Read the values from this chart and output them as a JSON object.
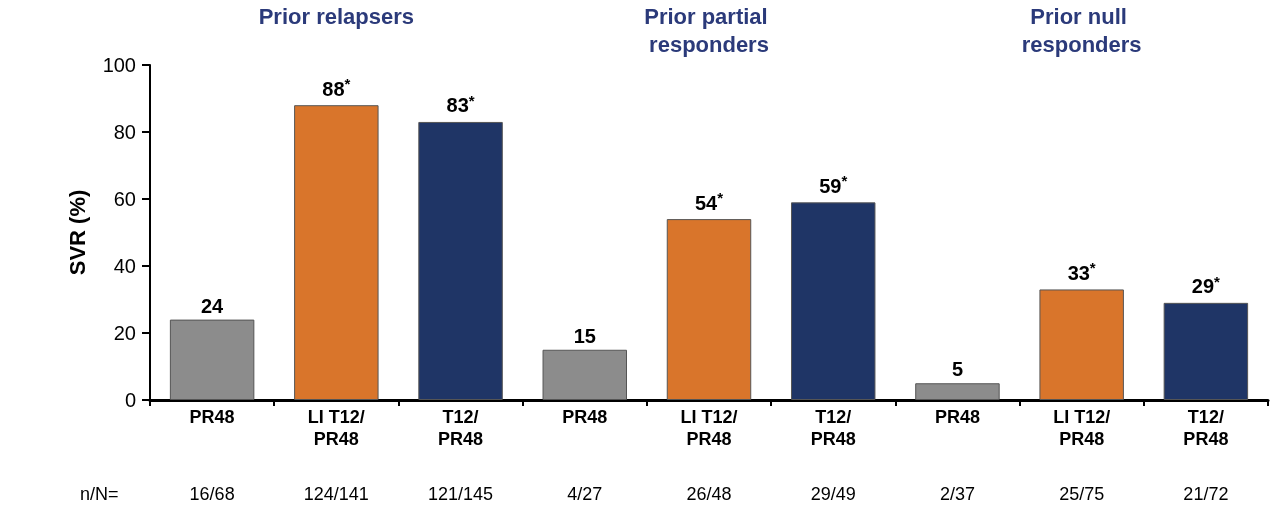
{
  "chart_data": {
    "type": "bar",
    "ylabel": "SVR (%)",
    "categories": [
      "PR48",
      "LI T12/\nPR48",
      "T12/\nPR48",
      "PR48",
      "LI T12/\nPR48",
      "T12/\nPR48",
      "PR48",
      "LI T12/\nPR48",
      "T12/\nPR48"
    ],
    "values": [
      24,
      88,
      83,
      15,
      54,
      59,
      5,
      33,
      29
    ],
    "colors": [
      "#8c8c8c",
      "#d9752b",
      "#1f3566",
      "#8c8c8c",
      "#d9752b",
      "#1f3566",
      "#8c8c8c",
      "#d9752b",
      "#1f3566"
    ],
    "value_labels": [
      "24",
      "88$^{*}$",
      "83$^{*}$",
      "15",
      "54$^{*}$",
      "59$^{*}$",
      "5",
      "33$^{*}$",
      "29$^{*}$"
    ],
    "ylim": [
      0,
      100
    ],
    "yticks": [
      0,
      20,
      40,
      60,
      80,
      100
    ],
    "grid": false,
    "annotations": [
      "Prior relapsers",
      "Prior partial responders",
      "Prior null responders",
      "n/N=",
      "16/68",
      "124/141",
      "121/145",
      "4/27",
      "26/48",
      "29/49",
      "2/37",
      "25/75",
      "21/72"
    ]
  }
}
